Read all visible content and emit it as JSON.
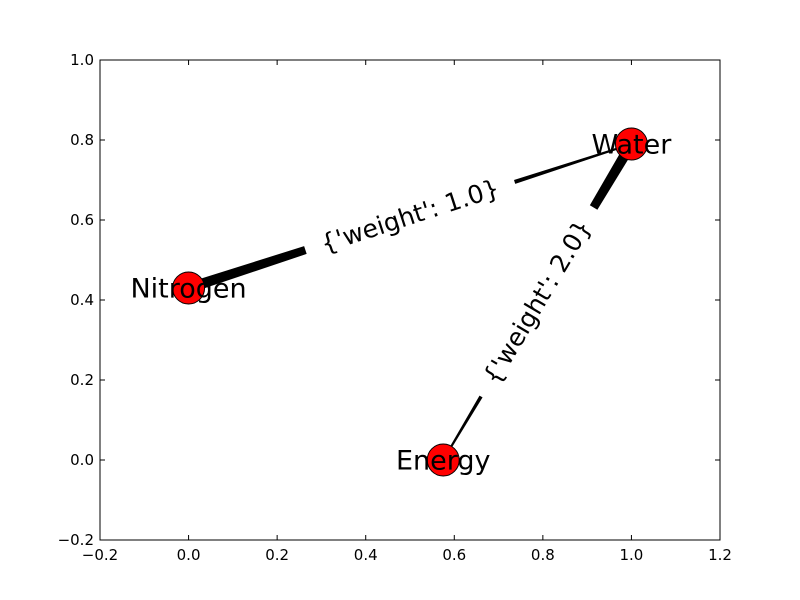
{
  "chart_data": {
    "type": "network",
    "xlim": [
      -0.2,
      1.2
    ],
    "ylim": [
      -0.2,
      1.0
    ],
    "x_ticks": [
      -0.2,
      0.0,
      0.2,
      0.4,
      0.6,
      0.8,
      1.0,
      1.2
    ],
    "y_ticks": [
      -0.2,
      0.0,
      0.2,
      0.4,
      0.6,
      0.8,
      1.0
    ],
    "x_tick_labels": [
      "−0.2",
      "0.0",
      "0.2",
      "0.4",
      "0.6",
      "0.8",
      "1.0",
      "1.2"
    ],
    "y_tick_labels": [
      "−0.2",
      "0.0",
      "0.2",
      "0.4",
      "0.6",
      "0.8",
      "1.0"
    ],
    "grid": false,
    "node_color": "#ff0000",
    "nodes": [
      {
        "id": "Nitrogen",
        "label": "Nitrogen",
        "x": 0.0,
        "y": 0.43
      },
      {
        "id": "Water",
        "label": "Water",
        "x": 1.0,
        "y": 0.79
      },
      {
        "id": "Energy",
        "label": "Energy",
        "x": 0.575,
        "y": 0.0
      }
    ],
    "edges": [
      {
        "source": "Nitrogen",
        "target": "Water",
        "weight": 1.0,
        "label": "{'weight': 1.0}"
      },
      {
        "source": "Water",
        "target": "Energy",
        "weight": 2.0,
        "label": "{'weight': 2.0}"
      }
    ]
  }
}
